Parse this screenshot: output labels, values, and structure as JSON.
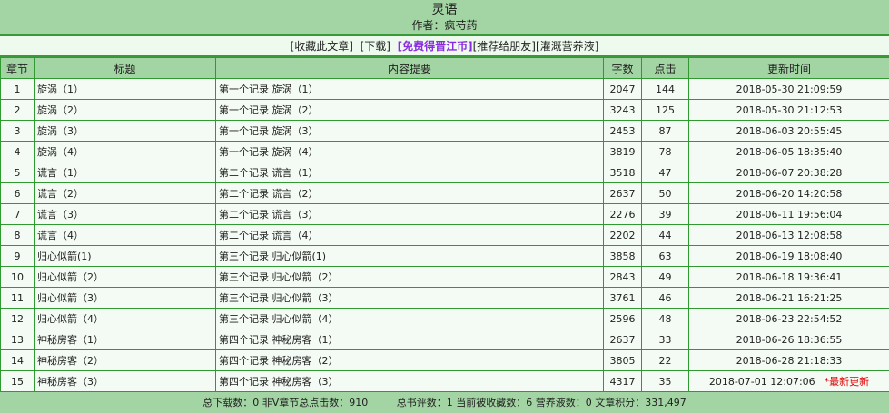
{
  "header": {
    "title": "灵语",
    "author": "作者：疯芍药"
  },
  "links": [
    "[收藏此文章]",
    "[下载]",
    "[免费得晋江币]",
    "[推荐给朋友]",
    "[灌溉营养液]"
  ],
  "columns": [
    "章节",
    "标题",
    "内容提要",
    "字数",
    "点击",
    "更新时间"
  ],
  "rows": [
    [
      "1",
      "旋涡（1）",
      "第一个记录 旋涡（1）",
      "2047",
      "144",
      "2018-05-30 21:09:59"
    ],
    [
      "2",
      "旋涡（2）",
      "第一个记录 旋涡（2）",
      "3243",
      "125",
      "2018-05-30 21:12:53"
    ],
    [
      "3",
      "旋涡（3）",
      "第一个记录 旋涡（3）",
      "2453",
      "87",
      "2018-06-03 20:55:45"
    ],
    [
      "4",
      "旋涡（4）",
      "第一个记录 旋涡（4）",
      "3819",
      "78",
      "2018-06-05 18:35:40"
    ],
    [
      "5",
      "谎言（1）",
      "第二个记录 谎言（1）",
      "3518",
      "47",
      "2018-06-07 20:38:28"
    ],
    [
      "6",
      "谎言（2）",
      "第二个记录 谎言（2）",
      "2637",
      "50",
      "2018-06-20 14:20:58"
    ],
    [
      "7",
      "谎言（3）",
      "第二个记录 谎言（3）",
      "2276",
      "39",
      "2018-06-11 19:56:04"
    ],
    [
      "8",
      "谎言（4）",
      "第二个记录 谎言（4）",
      "2202",
      "44",
      "2018-06-13 12:08:58"
    ],
    [
      "9",
      "归心似箭(1)",
      "第三个记录 归心似箭(1)",
      "3858",
      "63",
      "2018-06-19 18:08:40"
    ],
    [
      "10",
      "归心似箭（2）",
      "第三个记录 归心似箭（2）",
      "2843",
      "49",
      "2018-06-18 19:36:41"
    ],
    [
      "11",
      "归心似箭（3）",
      "第三个记录 归心似箭（3）",
      "3761",
      "46",
      "2018-06-21 16:21:25"
    ],
    [
      "12",
      "归心似箭（4）",
      "第三个记录 归心似箭（4）",
      "2596",
      "48",
      "2018-06-23 22:54:52"
    ],
    [
      "13",
      "神秘房客（1）",
      "第四个记录 神秘房客（1）",
      "2637",
      "33",
      "2018-06-26 18:36:55"
    ],
    [
      "14",
      "神秘房客（2）",
      "第四个记录 神秘房客（2）",
      "3805",
      "22",
      "2018-06-28 21:18:33"
    ],
    [
      "15",
      "神秘房客（3）",
      "第四个记录 神秘房客（3）",
      "4317",
      "35",
      "2018-07-01 12:07:06"
    ]
  ],
  "latest_label": "*最新更新",
  "footer": [
    "总下载数：0 非V章节总点击数：910",
    "总书评数：1 当前被收藏数：6 营养液数：0 文章积分：331,497"
  ]
}
